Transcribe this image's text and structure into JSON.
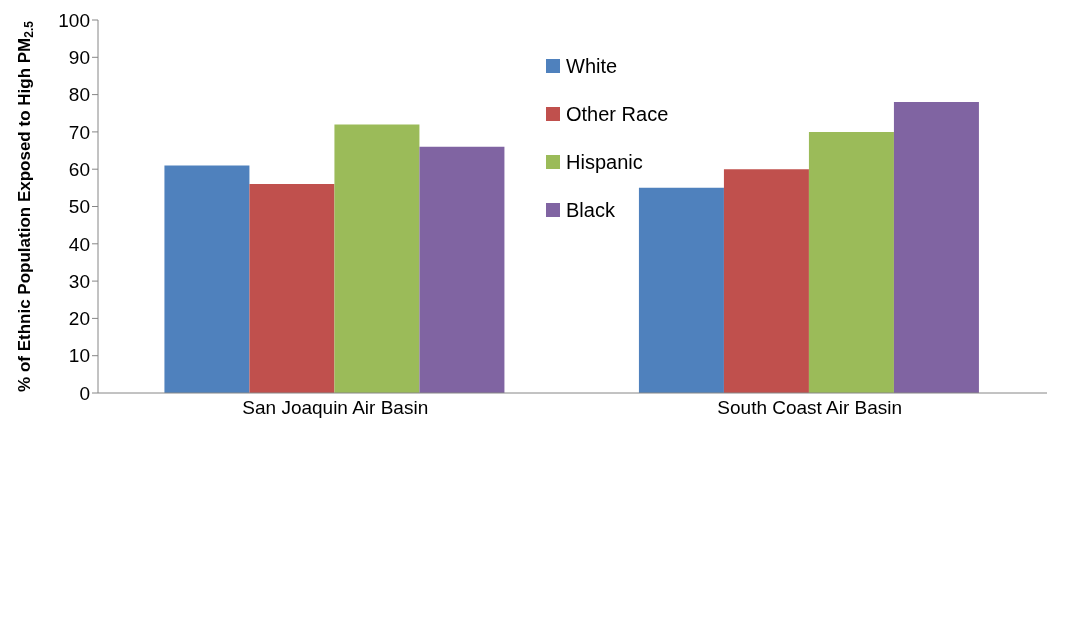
{
  "chart_data": {
    "type": "bar",
    "ylabel": "% of Ethnic Population Exposed to High PM$_{2.5}$",
    "categories": [
      "San Joaquin Air Basin",
      "South Coast Air Basin"
    ],
    "series": [
      {
        "name": "White",
        "color": "#4f81bd",
        "values": [
          61,
          55
        ]
      },
      {
        "name": "Other Race",
        "color": "#c0504d",
        "values": [
          56,
          60
        ]
      },
      {
        "name": "Hispanic",
        "color": "#9bbb59",
        "values": [
          72,
          70
        ]
      },
      {
        "name": "Black",
        "color": "#8064a2",
        "values": [
          66,
          78
        ]
      }
    ],
    "ylim": [
      0,
      100
    ],
    "yticks": [
      0,
      10,
      20,
      30,
      40,
      50,
      60,
      70,
      80,
      90,
      100
    ],
    "grid": false,
    "legend": "top"
  }
}
